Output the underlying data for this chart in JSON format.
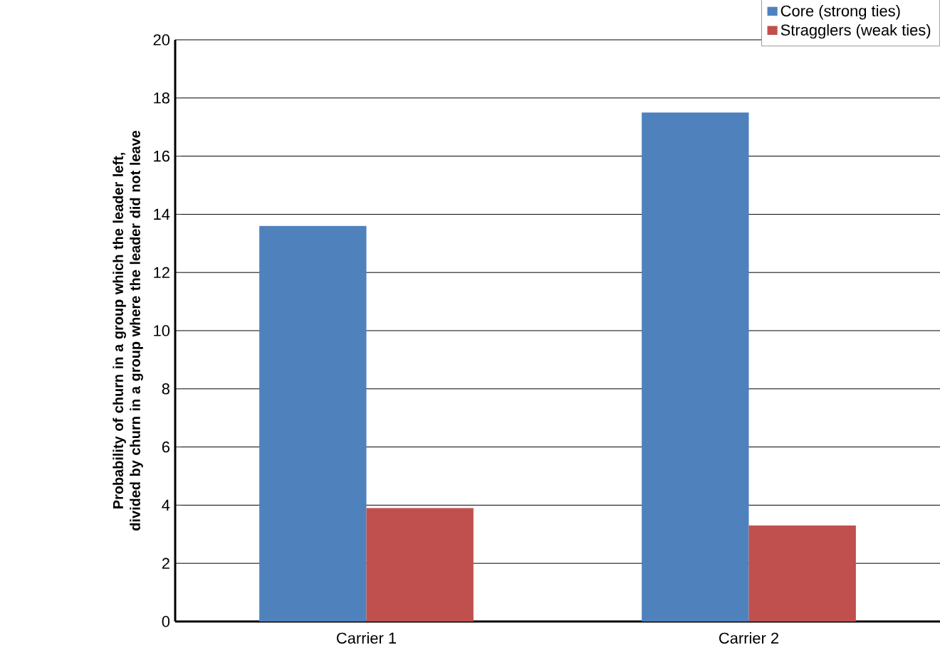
{
  "chart_data": {
    "type": "bar",
    "ylabel": "Probability of churn in a group which the leader left, divided by churn in a group where the leader did not leave",
    "categories": [
      "Carrier 1",
      "Carrier 2"
    ],
    "series": [
      {
        "name": "Core (strong ties)",
        "color": "#4f81bd",
        "values": [
          13.6,
          17.5
        ]
      },
      {
        "name": "Stragglers (weak ties)",
        "color": "#c0504d",
        "values": [
          3.9,
          3.3
        ]
      }
    ],
    "ylim": [
      0,
      20
    ],
    "yticks": [
      0,
      2,
      4,
      6,
      8,
      10,
      12,
      14,
      16,
      18,
      20
    ],
    "grid": "y",
    "legend": "top right"
  }
}
